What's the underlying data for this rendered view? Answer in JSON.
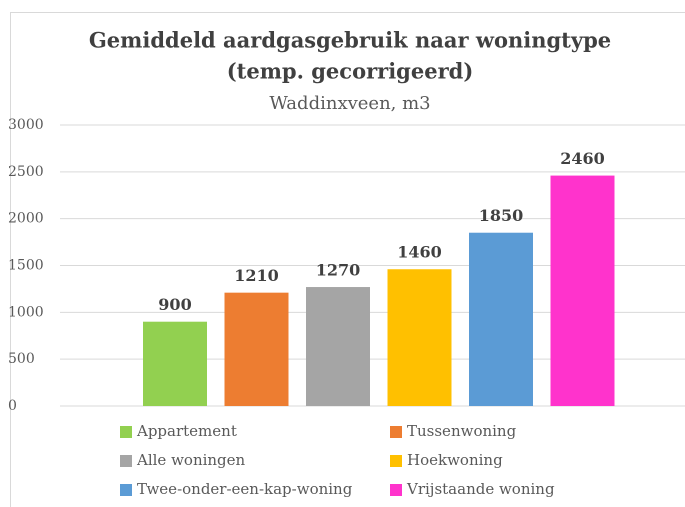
{
  "chart_data": {
    "type": "bar",
    "title": [
      "Gemiddeld aardgasgebruik naar woningtype",
      "(temp. gecorrigeerd)"
    ],
    "subtitle": "Waddinxveen, m3",
    "categories": [
      null
    ],
    "series": [
      {
        "name": "Appartement",
        "color": "#92d050",
        "values": [
          900
        ]
      },
      {
        "name": "Tussenwoning",
        "color": "#ed7d31",
        "values": [
          1210
        ]
      },
      {
        "name": "Alle woningen",
        "color": "#a5a5a5",
        "values": [
          1270
        ]
      },
      {
        "name": "Hoekwoning",
        "color": "#ffc000",
        "values": [
          1460
        ]
      },
      {
        "name": "Twee-onder-een-kap-woning",
        "color": "#5b9bd5",
        "values": [
          1850
        ]
      },
      {
        "name": "Vrijstaande woning",
        "color": "#ff33cc",
        "values": [
          2460
        ]
      }
    ],
    "ylim": [
      0,
      3000
    ],
    "yticks": [
      0,
      500,
      1000,
      1500,
      2000,
      2500,
      3000
    ],
    "grid": true,
    "legend": "bottom"
  }
}
